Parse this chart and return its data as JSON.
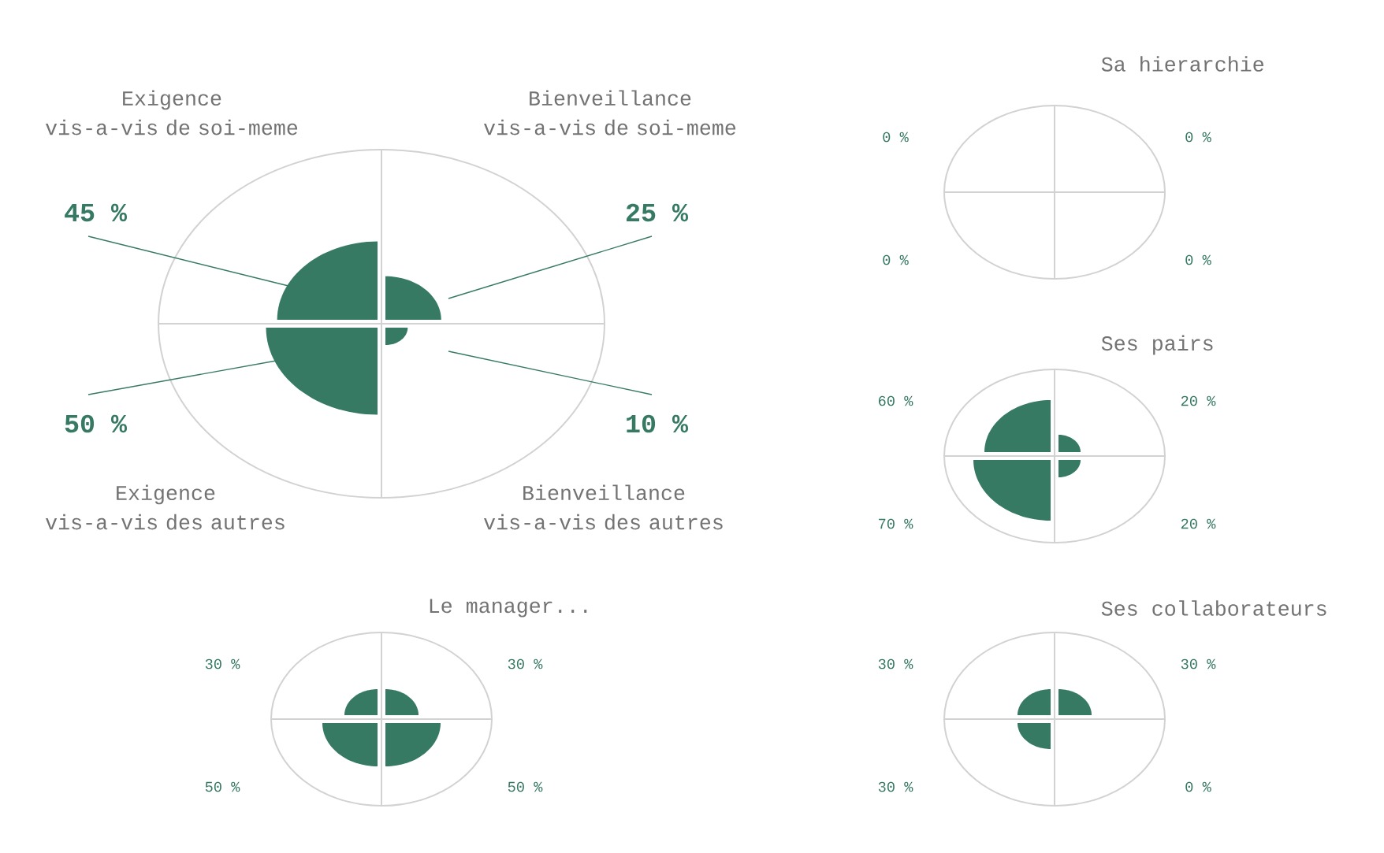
{
  "chart_data": [
    {
      "type": "other",
      "categories": [
        "Exigence vis-a-vis de soi-meme",
        "Bienveillance vis-a-vis de soi-meme",
        "Exigence vis-a-vis des autres",
        "Bienveillance vis-a-vis des autres"
      ],
      "values": [
        45,
        25,
        50,
        10
      ],
      "value_labels": [
        "45 %",
        "25 %",
        "50 %",
        "10 %"
      ],
      "color": "#367a63"
    },
    {
      "type": "other",
      "title": "Sa hierarchie",
      "categories": [
        null,
        null,
        null,
        null
      ],
      "values": [
        0,
        0,
        0,
        0
      ],
      "value_labels": [
        "0 %",
        "0 %",
        "0 %",
        "0 %"
      ],
      "color": "#367a63"
    },
    {
      "type": "other",
      "title": "Ses pairs",
      "categories": [
        null,
        null,
        null,
        null
      ],
      "values": [
        60,
        20,
        70,
        20
      ],
      "value_labels": [
        "60 %",
        "20 %",
        "70 %",
        "20 %"
      ],
      "color": "#367a63"
    },
    {
      "type": "other",
      "title": "Le manager...",
      "categories": [
        null,
        null,
        null,
        null
      ],
      "values": [
        30,
        30,
        50,
        50
      ],
      "value_labels": [
        "30 %",
        "30 %",
        "50 %",
        "50 %"
      ],
      "color": "#367a63"
    },
    {
      "type": "other",
      "title": "Ses collaborateurs",
      "categories": [
        null,
        null,
        null,
        null
      ],
      "values": [
        30,
        30,
        30,
        0
      ],
      "value_labels": [
        "30 %",
        "30 %",
        "30 %",
        "0 %"
      ],
      "color": "#367a63"
    }
  ]
}
